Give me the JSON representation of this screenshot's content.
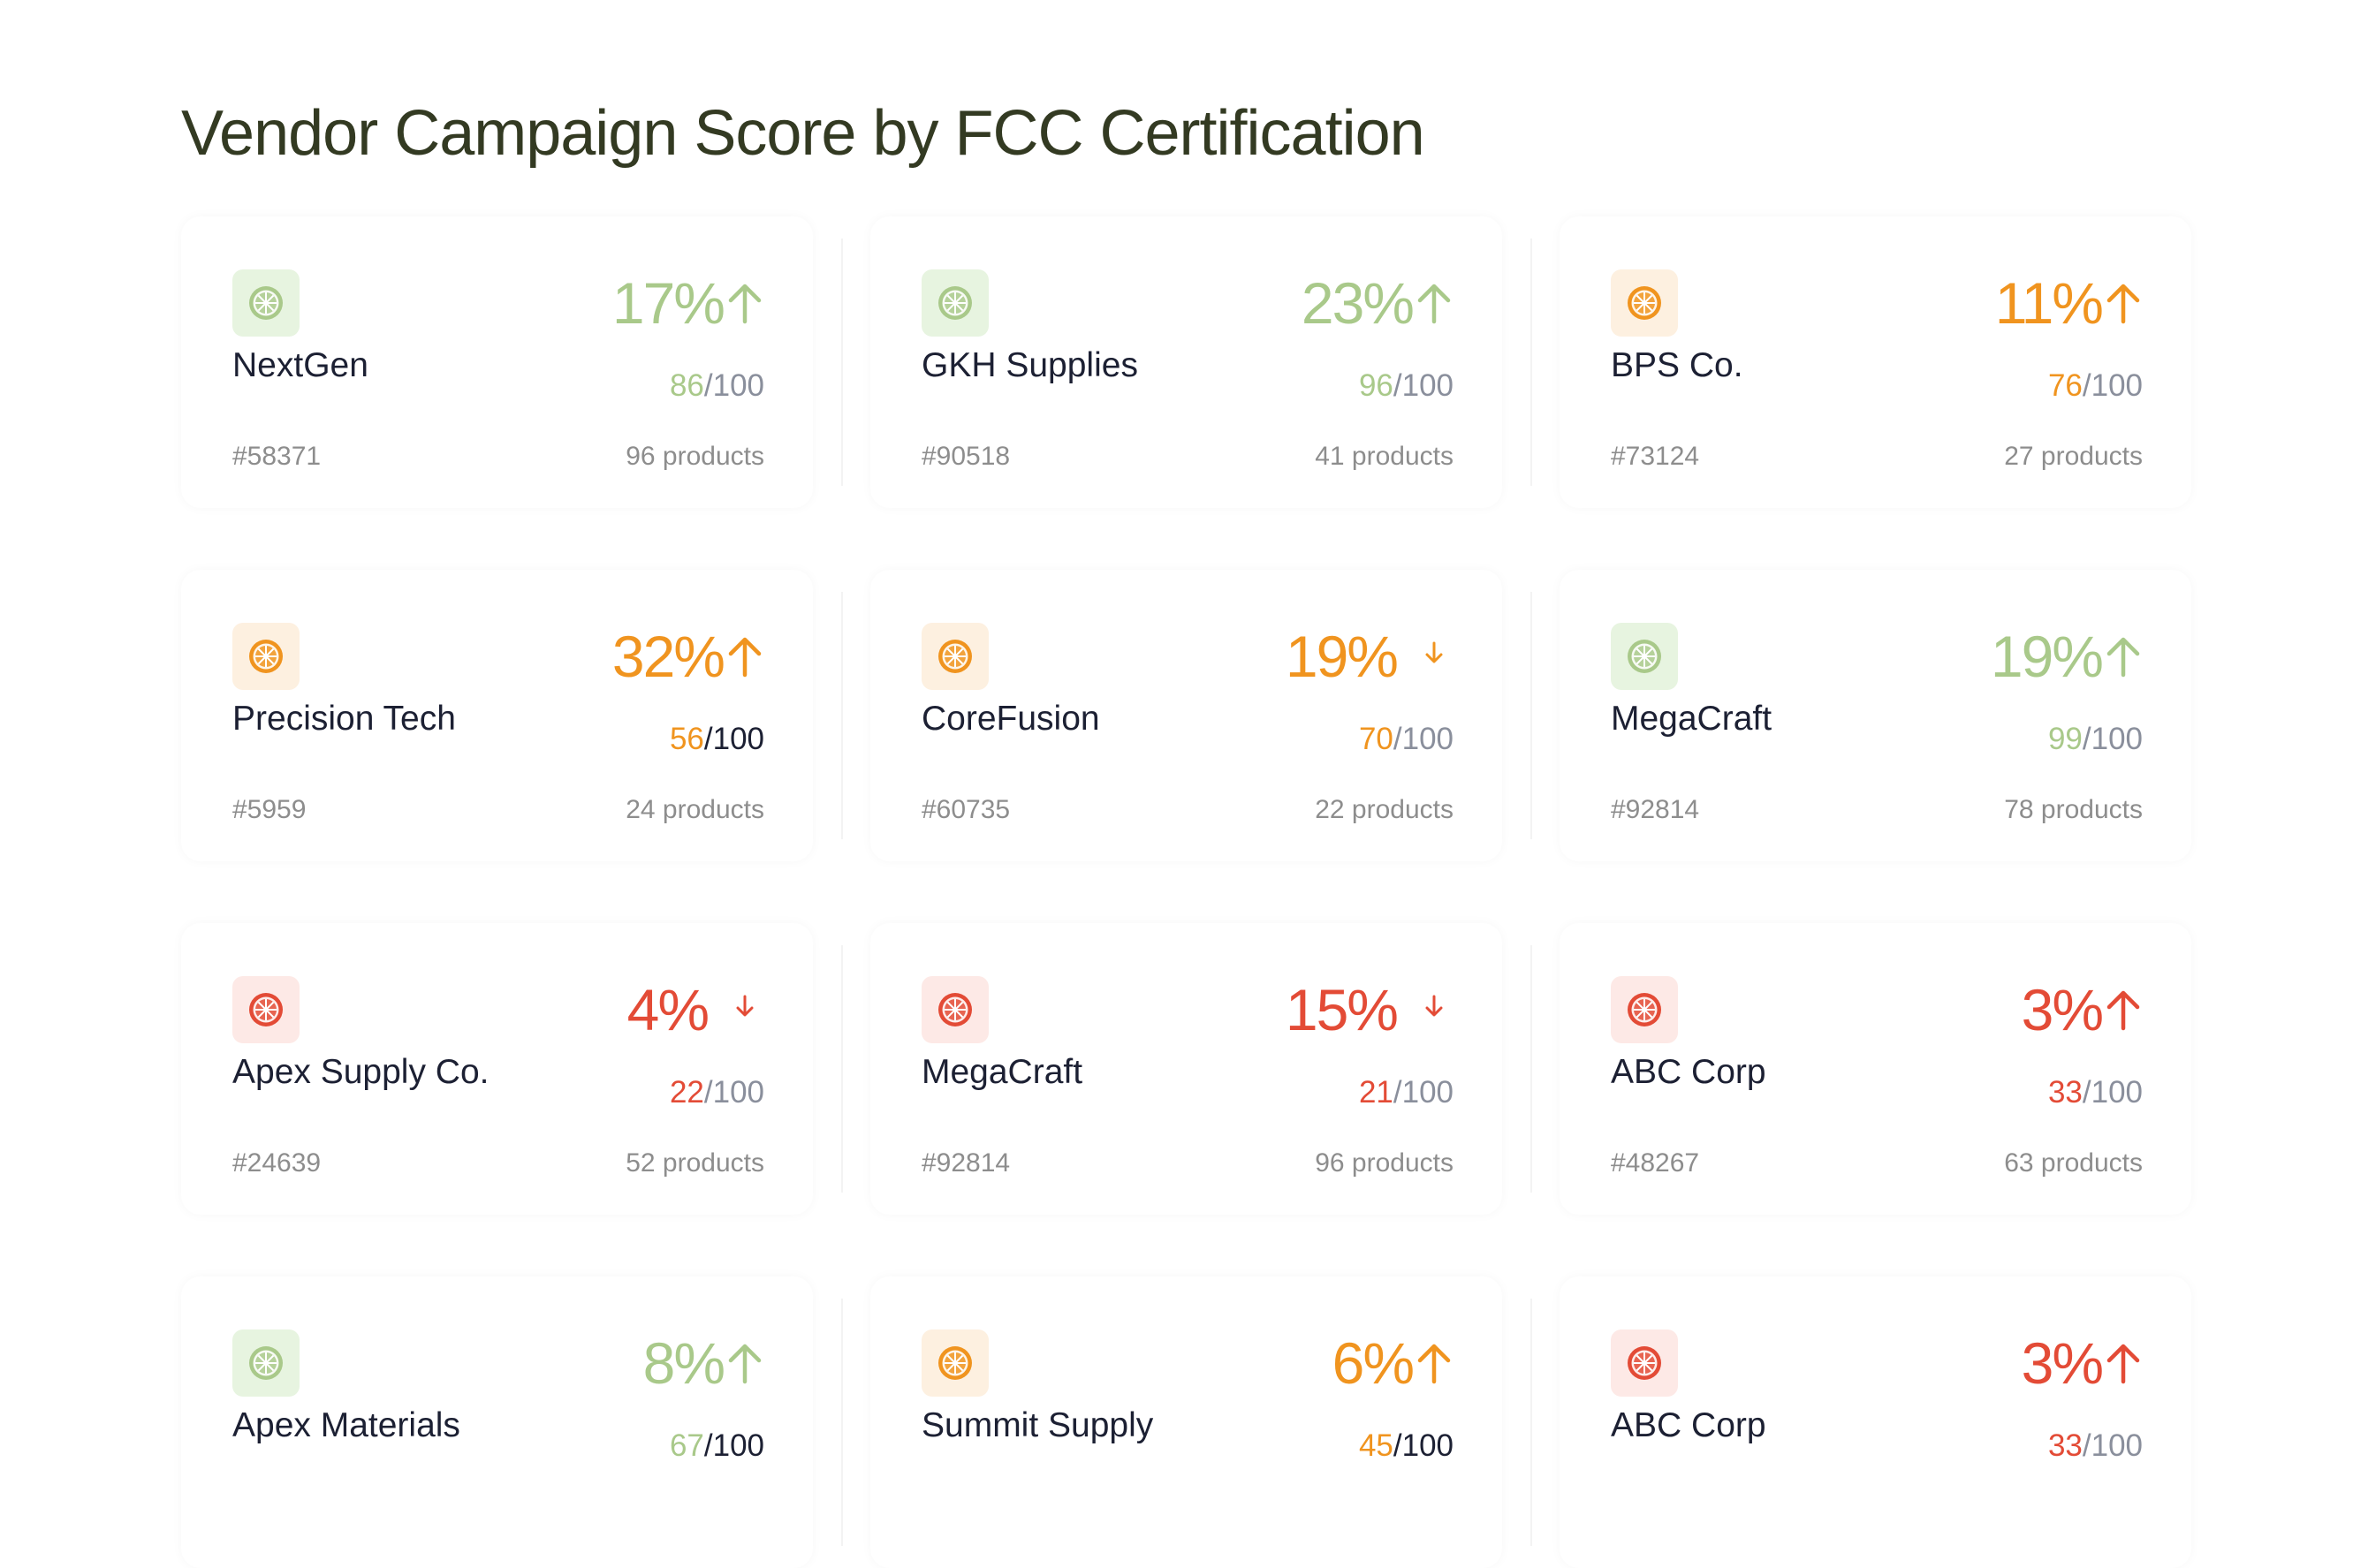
{
  "page": {
    "title": "Vendor Campaign Score by FCC Certification"
  },
  "colors": {
    "green": "#a9c98a",
    "orange": "#f0941f",
    "red": "#e34b36",
    "title": "#333a22"
  },
  "vendors": [
    {
      "name": "NextGen",
      "pct": "17%",
      "trend": "up",
      "score": "86",
      "score_max": "/100",
      "code": "#58371",
      "products": "96 products",
      "tone": "green",
      "icon": "citrus-slice-icon"
    },
    {
      "name": "GKH Supplies",
      "pct": "23%",
      "trend": "up",
      "score": "96",
      "score_max": "/100",
      "code": "#90518",
      "products": "41 products",
      "tone": "green",
      "icon": "citrus-slice-icon"
    },
    {
      "name": "BPS Co.",
      "pct": "11%",
      "trend": "up",
      "score": "76",
      "score_max": "/100",
      "code": "#73124",
      "products": "27 products",
      "tone": "orange",
      "icon": "citrus-slice-icon"
    },
    {
      "name": "Precision Tech",
      "pct": "32%",
      "trend": "up",
      "score": "56",
      "score_max": "/100",
      "code": "#5959",
      "products": "24 products",
      "tone": "orange",
      "icon": "citrus-slice-icon",
      "dark_max": true
    },
    {
      "name": "CoreFusion",
      "pct": "19%",
      "trend": "down",
      "score": "70",
      "score_max": "/100",
      "code": "#60735",
      "products": "22 products",
      "tone": "orange",
      "icon": "citrus-slice-icon"
    },
    {
      "name": "MegaCraft",
      "pct": "19%",
      "trend": "up",
      "score": "99",
      "score_max": "/100",
      "code": "#92814",
      "products": "78 products",
      "tone": "green",
      "icon": "citrus-slice-icon"
    },
    {
      "name": "Apex Supply Co.",
      "pct": "4%",
      "trend": "down",
      "score": "22",
      "score_max": "/100",
      "code": "#24639",
      "products": "52 products",
      "tone": "red",
      "icon": "citrus-slice-icon"
    },
    {
      "name": "MegaCraft",
      "pct": "15%",
      "trend": "down",
      "score": "21",
      "score_max": "/100",
      "code": "#92814",
      "products": "96 products",
      "tone": "red",
      "icon": "citrus-slice-icon"
    },
    {
      "name": "ABC Corp",
      "pct": "3%",
      "trend": "up",
      "score": "33",
      "score_max": "/100",
      "code": "#48267",
      "products": "63 products",
      "tone": "red",
      "icon": "citrus-slice-icon"
    },
    {
      "name": "Apex Materials",
      "pct": "8%",
      "trend": "up",
      "score": "67",
      "score_max": "/100",
      "code": "",
      "products": "",
      "tone": "green",
      "icon": "citrus-slice-icon",
      "dark_max": true
    },
    {
      "name": "Summit Supply",
      "pct": "6%",
      "trend": "up",
      "score": "45",
      "score_max": "/100",
      "code": "",
      "products": "",
      "tone": "orange",
      "icon": "citrus-slice-icon",
      "dark_max": true
    },
    {
      "name": "ABC Corp",
      "pct": "3%",
      "trend": "up",
      "score": "33",
      "score_max": "/100",
      "code": "",
      "products": "",
      "tone": "red",
      "icon": "citrus-slice-icon"
    }
  ]
}
